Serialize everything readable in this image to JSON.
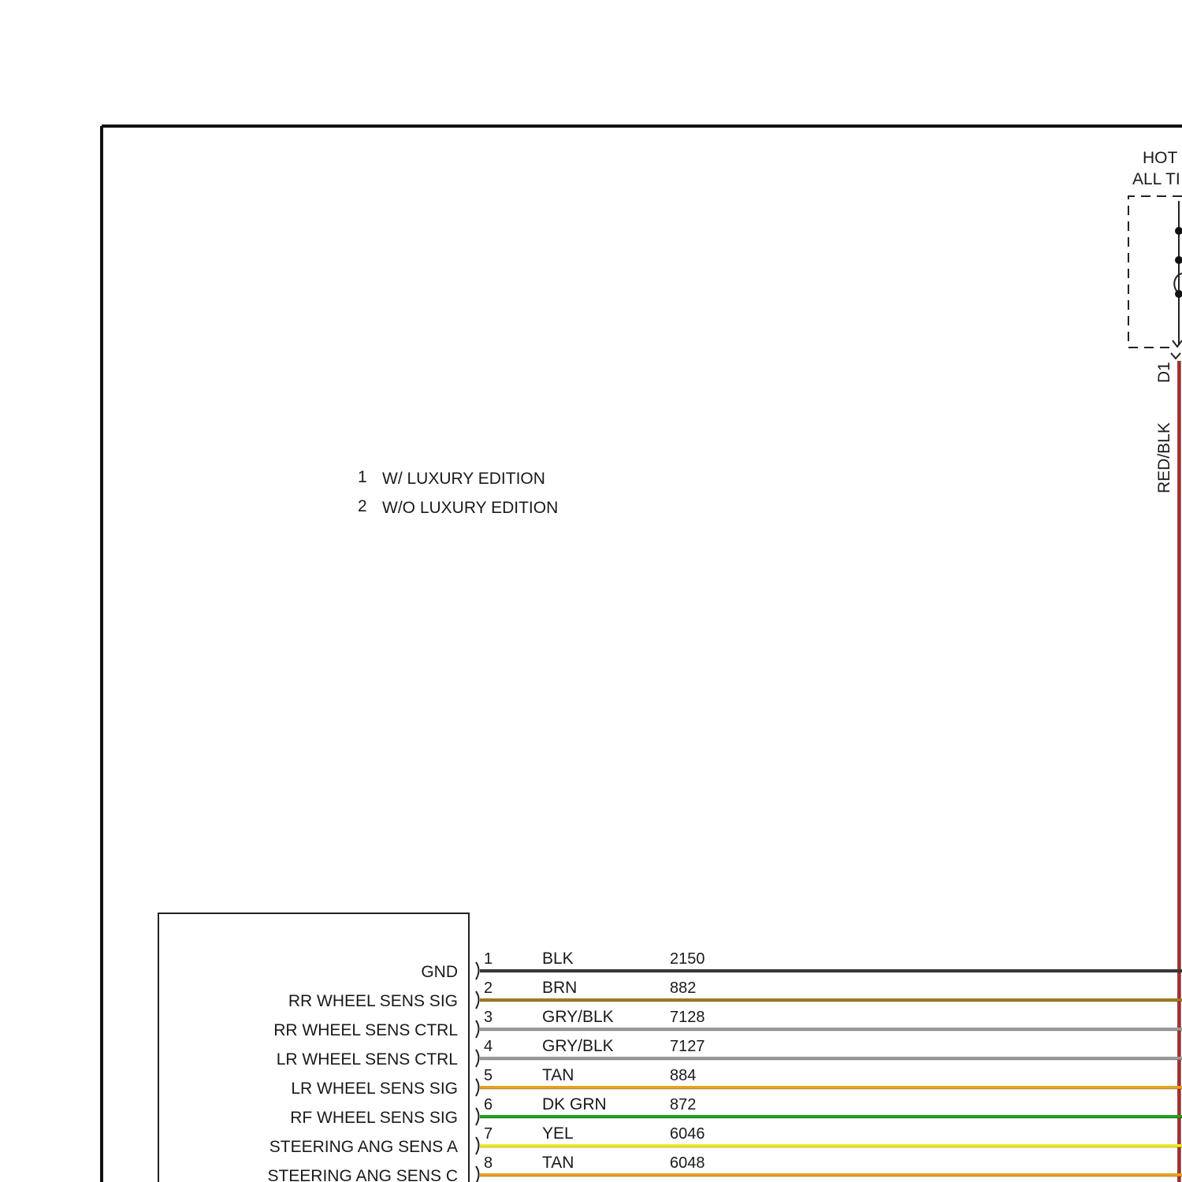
{
  "power_source": {
    "label_line1": "HOT",
    "label_line2": "ALL TI",
    "terminal": "D1",
    "wire_color_code": "RED/BLK",
    "wire_color": "#c8282a"
  },
  "notes": [
    {
      "num": "1",
      "text": "W/ LUXURY EDITION"
    },
    {
      "num": "2",
      "text": "W/O LUXURY EDITION"
    }
  ],
  "connector": {
    "pins": [
      {
        "signal": "GND",
        "pin": "1",
        "color_code": "BLK",
        "circuit": "2150",
        "color": "#3a3a3a"
      },
      {
        "signal": "RR WHEEL SENS SIG",
        "pin": "2",
        "color_code": "BRN",
        "circuit": "882",
        "color": "#a07a1e"
      },
      {
        "signal": "RR WHEEL SENS CTRL",
        "pin": "3",
        "color_code": "GRY/BLK",
        "circuit": "7128",
        "color": "#9a9a9a"
      },
      {
        "signal": "LR WHEEL SENS CTRL",
        "pin": "4",
        "color_code": "GRY/BLK",
        "circuit": "7127",
        "color": "#9a9a9a"
      },
      {
        "signal": "LR WHEEL SENS SIG",
        "pin": "5",
        "color_code": "TAN",
        "circuit": "884",
        "color": "#e6a21e"
      },
      {
        "signal": "RF WHEEL SENS SIG",
        "pin": "6",
        "color_code": "DK GRN",
        "circuit": "872",
        "color": "#1ea01e"
      },
      {
        "signal": "STEERING ANG SENS A",
        "pin": "7",
        "color_code": "YEL",
        "circuit": "6046",
        "color": "#f2ea1e"
      },
      {
        "signal": "STEERING ANG SENS C",
        "pin": "8",
        "color_code": "TAN",
        "circuit": "6048",
        "color": "#e6a21e"
      }
    ]
  }
}
